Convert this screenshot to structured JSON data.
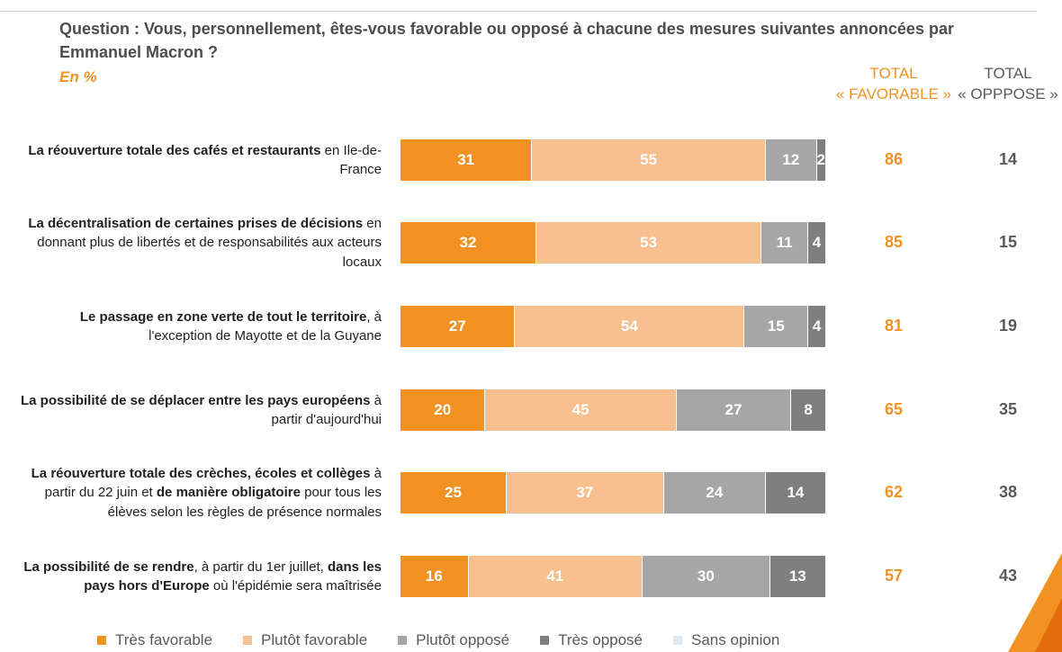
{
  "header": {
    "question": "Question : Vous, personnellement, êtes-vous favorable ou opposé à chacune des mesures suivantes annoncées par Emmanuel Macron ?",
    "unit": "En %",
    "total_favorable_line1": "TOTAL",
    "total_favorable_line2": "« FAVORABLE »",
    "total_oppose_line1": "TOTAL",
    "total_oppose_line2": "« OPPPOSE »"
  },
  "colors": {
    "tres_favorable": "#f29222",
    "plutot_favorable": "#f8c08f",
    "plutot_oppose": "#a6a6a6",
    "tres_oppose": "#7f7f7f",
    "sans_opinion": "#dde9f3"
  },
  "rows": [
    {
      "label_parts": [
        {
          "text": "La réouverture totale des cafés et restaurants",
          "bold": true
        },
        {
          "text": " en Ile-de-France",
          "bold": false
        }
      ],
      "total_favorable": "86",
      "total_oppose": "14"
    },
    {
      "label_parts": [
        {
          "text": "La décentralisation de certaines prises de décisions",
          "bold": true
        },
        {
          "text": " en donnant plus de libertés et de responsabilités aux acteurs locaux",
          "bold": false
        }
      ],
      "total_favorable": "85",
      "total_oppose": "15"
    },
    {
      "label_parts": [
        {
          "text": "Le passage en zone verte de tout le territoire",
          "bold": true
        },
        {
          "text": ", à l'exception de Mayotte et de la Guyane",
          "bold": false
        }
      ],
      "total_favorable": "81",
      "total_oppose": "19"
    },
    {
      "label_parts": [
        {
          "text": "La possibilité de se déplacer entre les pays européens",
          "bold": true
        },
        {
          "text": " à partir d'aujourd'hui",
          "bold": false
        }
      ],
      "total_favorable": "65",
      "total_oppose": "35"
    },
    {
      "label_parts": [
        {
          "text": "La réouverture totale des crèches, écoles et collèges",
          "bold": true
        },
        {
          "text": " à partir du 22 juin et ",
          "bold": false
        },
        {
          "text": "de manière obligatoire",
          "bold": true
        },
        {
          "text": " pour tous les élèves selon les règles de présence normales",
          "bold": false
        }
      ],
      "total_favorable": "62",
      "total_oppose": "38"
    },
    {
      "label_parts": [
        {
          "text": "La possibilité de se rendre",
          "bold": true
        },
        {
          "text": ", à partir du 1er juillet, ",
          "bold": false
        },
        {
          "text": "dans les pays hors d'Europe",
          "bold": true
        },
        {
          "text": " où l'épidémie sera maîtrisée",
          "bold": false
        }
      ],
      "total_favorable": "57",
      "total_oppose": "43"
    }
  ],
  "chart_data": {
    "type": "bar",
    "orientation": "horizontal",
    "stacked": true,
    "unit": "%",
    "xlim": [
      0,
      100
    ],
    "categories": [
      "La réouverture totale des cafés et restaurants en Ile-de-France",
      "La décentralisation de certaines prises de décisions en donnant plus de libertés et de responsabilités aux acteurs locaux",
      "Le passage en zone verte de tout le territoire, à l'exception de Mayotte et de la Guyane",
      "La possibilité de se déplacer entre les pays européens à partir d'aujourd'hui",
      "La réouverture totale des crèches, écoles et collèges à partir du 22 juin et de manière obligatoire pour tous les élèves selon les règles de présence normales",
      "La possibilité de se rendre, à partir du 1er juillet, dans les pays hors d'Europe où l'épidémie sera maîtrisée"
    ],
    "series": [
      {
        "name": "Très favorable",
        "color": "#f29222",
        "values": [
          31,
          32,
          27,
          20,
          25,
          16
        ]
      },
      {
        "name": "Plutôt favorable",
        "color": "#f8c08f",
        "values": [
          55,
          53,
          54,
          45,
          37,
          41
        ]
      },
      {
        "name": "Plutôt opposé",
        "color": "#a6a6a6",
        "values": [
          12,
          11,
          15,
          27,
          24,
          30
        ]
      },
      {
        "name": "Très opposé",
        "color": "#7f7f7f",
        "values": [
          2,
          4,
          4,
          8,
          14,
          13
        ]
      },
      {
        "name": "Sans opinion",
        "color": "#dde9f3",
        "values": [
          0,
          0,
          0,
          0,
          0,
          0
        ]
      }
    ],
    "legend_position": "bottom"
  }
}
